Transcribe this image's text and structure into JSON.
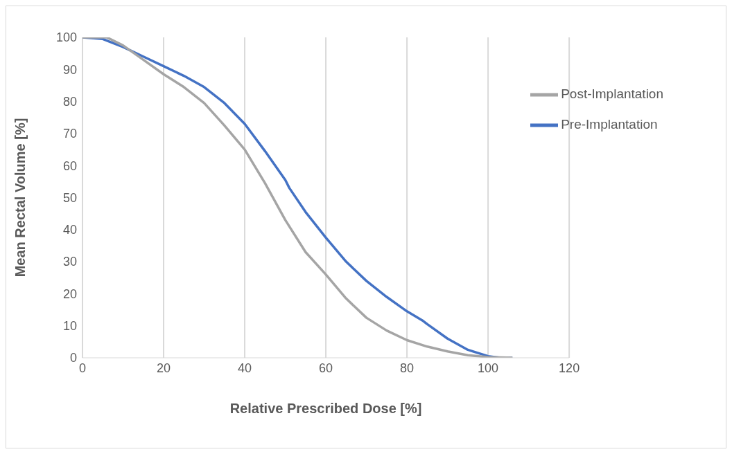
{
  "chart_data": {
    "type": "line",
    "xlabel": "Relative Prescribed Dose [%]",
    "ylabel": "Mean Rectal Volume [%]",
    "xlim": [
      0,
      120
    ],
    "xticks": [
      0,
      20,
      40,
      60,
      80,
      100,
      120
    ],
    "ylim": [
      0,
      100
    ],
    "yticks": [
      0,
      10,
      20,
      30,
      40,
      50,
      60,
      70,
      80,
      90,
      100
    ],
    "grid": "x",
    "legend": "top right",
    "series": [
      {
        "name": "Pre-Implantation",
        "color": "#4472c4",
        "x": [
          0,
          5,
          10,
          15,
          20,
          25,
          30,
          35,
          40,
          45,
          50,
          51,
          55,
          60,
          65,
          70,
          75,
          80,
          84,
          85,
          90,
          95,
          100,
          103,
          106
        ],
        "values": [
          100,
          99.5,
          97,
          94,
          91,
          88,
          84.5,
          79.5,
          73,
          64.5,
          55.5,
          53,
          45.5,
          37.5,
          30,
          24,
          19,
          14.5,
          11.5,
          10.5,
          6,
          2.5,
          0.5,
          0,
          0
        ]
      },
      {
        "name": "Post-Implantation",
        "color": "#a5a5a5",
        "x": [
          0,
          6,
          10,
          15,
          20,
          25,
          30,
          35,
          40,
          45,
          50,
          55,
          60,
          65,
          70,
          75,
          80,
          85,
          90,
          95,
          100,
          106
        ],
        "values": [
          100,
          100,
          97.5,
          93,
          88.5,
          84.5,
          79.5,
          72.5,
          65,
          54.5,
          43,
          33,
          26,
          18.5,
          12.5,
          8.5,
          5.5,
          3.5,
          2,
          0.8,
          0.2,
          0
        ]
      }
    ]
  }
}
